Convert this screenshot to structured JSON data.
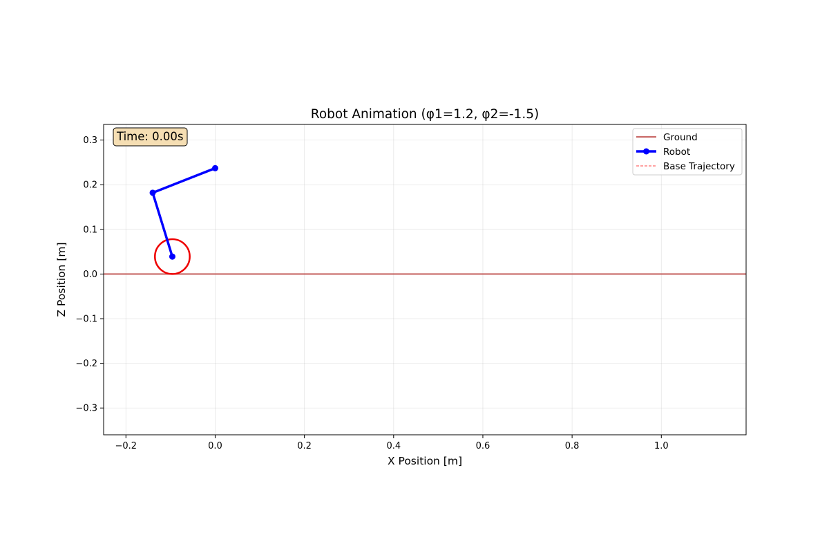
{
  "chart_data": {
    "type": "line",
    "title": "Robot Animation (φ1=1.2, φ2=-1.5)",
    "xlabel": "X Position [m]",
    "ylabel": "Z Position [m]",
    "xlim": [
      -0.25,
      1.19
    ],
    "ylim": [
      -0.36,
      0.335
    ],
    "x_ticks": [
      -0.2,
      0.0,
      0.2,
      0.4,
      0.6,
      0.8,
      1.0
    ],
    "x_tick_labels": [
      "−0.2",
      "0.0",
      "0.2",
      "0.4",
      "0.6",
      "0.8",
      "1.0"
    ],
    "y_ticks": [
      -0.3,
      -0.2,
      -0.1,
      0.0,
      0.1,
      0.2,
      0.3
    ],
    "y_tick_labels": [
      "−0.3",
      "−0.2",
      "−0.1",
      "0.0",
      "0.1",
      "0.2",
      "0.3"
    ],
    "grid": true,
    "legend_position": "top-right",
    "time_text": "Time: 0.00s",
    "series": [
      {
        "name": "Ground",
        "color": "#c0504d",
        "x": [
          -0.25,
          1.19
        ],
        "y": [
          0.0,
          0.0
        ]
      },
      {
        "name": "Robot",
        "color": "#0000ff",
        "marker": "circle",
        "x": [
          0.0,
          -0.14,
          -0.096
        ],
        "y": [
          0.237,
          0.182,
          0.039
        ]
      },
      {
        "name": "Base Trajectory",
        "color": "#ff6b6b",
        "style": "dashed",
        "x": [],
        "y": []
      }
    ],
    "wheel": {
      "center": [
        -0.096,
        0.039
      ],
      "radius": 0.039,
      "color": "#ee0000"
    }
  }
}
